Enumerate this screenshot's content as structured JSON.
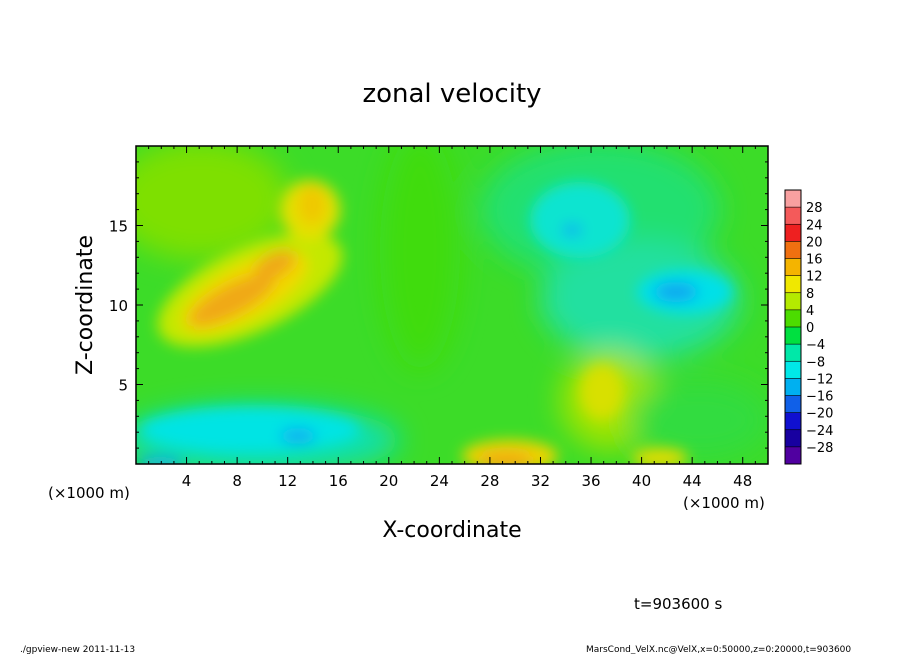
{
  "chart_data": {
    "type": "heatmap",
    "title": "zonal velocity",
    "xlabel": "X-coordinate",
    "ylabel": "Z-coordinate",
    "x_unit_left": "(×1000 m)",
    "x_unit_right": "(×1000 m)",
    "xlim": [
      0,
      50
    ],
    "ylim": [
      0,
      20
    ],
    "x_ticks": [
      4,
      8,
      12,
      16,
      20,
      24,
      28,
      32,
      36,
      40,
      44,
      48
    ],
    "y_ticks": [
      5,
      10,
      15
    ],
    "colorbar": {
      "levels": [
        28,
        24,
        20,
        16,
        12,
        8,
        4,
        0,
        -4,
        -8,
        -12,
        -16,
        -20,
        -24,
        -28
      ],
      "labels": [
        "28",
        "24",
        "20",
        "16",
        "12",
        "8",
        "4",
        "0",
        "−4",
        "−8",
        "−12",
        "−16",
        "−20",
        "−24",
        "−28"
      ],
      "colors": [
        "#f8a0a0",
        "#f45a5a",
        "#ee2020",
        "#f07010",
        "#f4b400",
        "#f0e800",
        "#b4ea00",
        "#4cdc00",
        "#00e040",
        "#00e8a8",
        "#00e8e8",
        "#00b0f0",
        "#1060e8",
        "#1010d0",
        "#1800a0",
        "#5000a0"
      ]
    },
    "fields": {
      "background_value": 0,
      "features": [
        {
          "x": 8,
          "z": 10.5,
          "value": 16
        },
        {
          "x": 12,
          "z": 12.5,
          "value": 14
        },
        {
          "x": 13.5,
          "z": 16.5,
          "value": 10
        },
        {
          "x": 30,
          "z": 0.5,
          "value": 14
        },
        {
          "x": 36,
          "z": 5,
          "value": 6
        },
        {
          "x": 42.5,
          "z": 10.5,
          "value": -12
        },
        {
          "x": 34,
          "z": 14.5,
          "value": -10
        },
        {
          "x": 12.5,
          "z": 1.5,
          "value": -12
        },
        {
          "x": 7,
          "z": 2,
          "value": -8
        },
        {
          "x": 2,
          "z": 0.3,
          "value": -10
        }
      ]
    },
    "time_label": "t=903600 s"
  },
  "footer": {
    "left": "./gpview-new 2011-11-13",
    "right": "MarsCond_VelX.nc@VelX,x=0:50000,z=0:20000,t=903600"
  }
}
